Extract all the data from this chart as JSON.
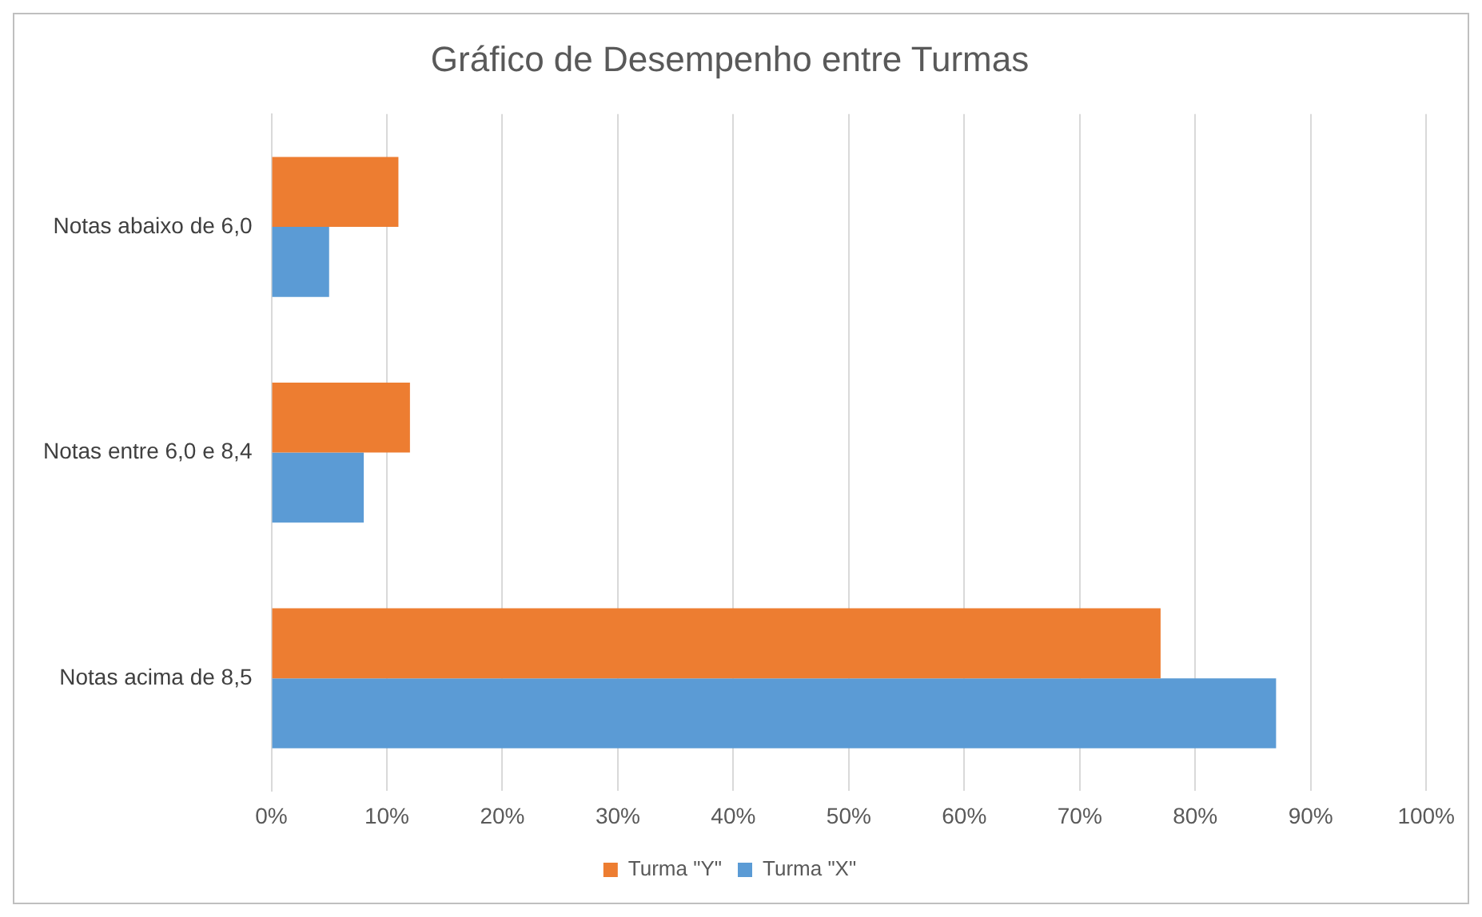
{
  "chart_data": {
    "type": "bar",
    "orientation": "horizontal",
    "title": "Gráfico de Desempenho entre Turmas",
    "categories": [
      "Notas abaixo de 6,0",
      "Notas entre 6,0 e 8,4",
      "Notas acima de 8,5"
    ],
    "series": [
      {
        "name": "Turma \"Y\"",
        "color": "#ed7d31",
        "values": [
          11,
          12,
          77
        ]
      },
      {
        "name": "Turma \"X\"",
        "color": "#5b9bd5",
        "values": [
          5,
          8,
          87
        ]
      }
    ],
    "xlim": [
      0,
      100
    ],
    "xticks": [
      {
        "value": 0,
        "label": "0%"
      },
      {
        "value": 10,
        "label": "10%"
      },
      {
        "value": 20,
        "label": "20%"
      },
      {
        "value": 30,
        "label": "30%"
      },
      {
        "value": 40,
        "label": "40%"
      },
      {
        "value": 50,
        "label": "50%"
      },
      {
        "value": 60,
        "label": "60%"
      },
      {
        "value": 70,
        "label": "70%"
      },
      {
        "value": 80,
        "label": "80%"
      },
      {
        "value": 90,
        "label": "90%"
      },
      {
        "value": 100,
        "label": "100%"
      }
    ],
    "grid": "x",
    "legend": "bottom"
  }
}
